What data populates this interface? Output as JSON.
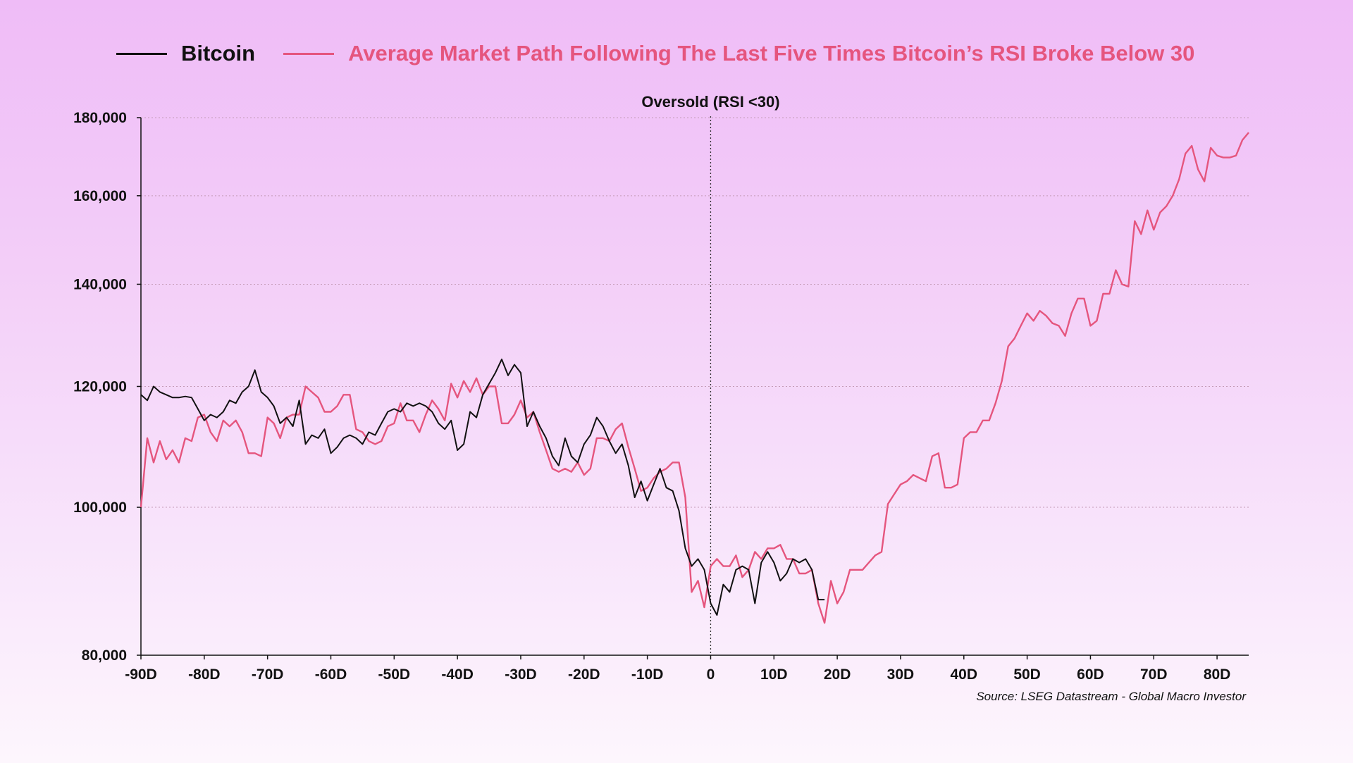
{
  "chart_data": {
    "type": "line",
    "title": "",
    "xlabel": "",
    "ylabel": "",
    "xlim": [
      -90,
      85
    ],
    "ylim": [
      80000,
      180000
    ],
    "y_scale": "log",
    "x_ticks": [
      -90,
      -80,
      -70,
      -60,
      -50,
      -40,
      -30,
      -20,
      -10,
      0,
      10,
      20,
      30,
      40,
      50,
      60,
      70,
      80
    ],
    "x_tick_labels": [
      "-90D",
      "-80D",
      "-70D",
      "-60D",
      "-50D",
      "-40D",
      "-30D",
      "-20D",
      "-10D",
      "0",
      "10D",
      "20D",
      "30D",
      "40D",
      "50D",
      "60D",
      "70D",
      "80D"
    ],
    "y_ticks": [
      80000,
      100000,
      120000,
      140000,
      160000,
      180000
    ],
    "y_tick_labels": [
      "80,000",
      "100,000",
      "120,000",
      "140,000",
      "160,000",
      "180,000"
    ],
    "grid": "horizontal dotted",
    "legend_position": "top",
    "annotations": [
      {
        "x": 0,
        "label": "Oversold (RSI <30)"
      }
    ],
    "source": "Source: LSEG Datastream - Global Macro Investor",
    "series": [
      {
        "name": "Bitcoin",
        "color": "#111111",
        "points": [
          [
            -90,
            118500
          ],
          [
            -89,
            117500
          ],
          [
            -88,
            120000
          ],
          [
            -87,
            119000
          ],
          [
            -86,
            118500
          ],
          [
            -85,
            118000
          ],
          [
            -84,
            118000
          ],
          [
            -83,
            118200
          ],
          [
            -82,
            118000
          ],
          [
            -81,
            116000
          ],
          [
            -80,
            114000
          ],
          [
            -79,
            115000
          ],
          [
            -78,
            114500
          ],
          [
            -77,
            115500
          ],
          [
            -76,
            117500
          ],
          [
            -75,
            117000
          ],
          [
            -74,
            119000
          ],
          [
            -73,
            120000
          ],
          [
            -72,
            123000
          ],
          [
            -71,
            119000
          ],
          [
            -70,
            118000
          ],
          [
            -69,
            116500
          ],
          [
            -68,
            113500
          ],
          [
            -67,
            114500
          ],
          [
            -66,
            113000
          ],
          [
            -65,
            117500
          ],
          [
            -64,
            110000
          ],
          [
            -63,
            111500
          ],
          [
            -62,
            111000
          ],
          [
            -61,
            112500
          ],
          [
            -60,
            108500
          ],
          [
            -59,
            109500
          ],
          [
            -58,
            111000
          ],
          [
            -57,
            111500
          ],
          [
            -56,
            111000
          ],
          [
            -55,
            110000
          ],
          [
            -54,
            112000
          ],
          [
            -53,
            111500
          ],
          [
            -52,
            113500
          ],
          [
            -51,
            115500
          ],
          [
            -50,
            116000
          ],
          [
            -49,
            115500
          ],
          [
            -48,
            117000
          ],
          [
            -47,
            116500
          ],
          [
            -46,
            117000
          ],
          [
            -45,
            116500
          ],
          [
            -44,
            115500
          ],
          [
            -43,
            113500
          ],
          [
            -42,
            112500
          ],
          [
            -41,
            114000
          ],
          [
            -40,
            109000
          ],
          [
            -39,
            110000
          ],
          [
            -38,
            115500
          ],
          [
            -37,
            114500
          ],
          [
            -36,
            118500
          ],
          [
            -35,
            120500
          ],
          [
            -34,
            122500
          ],
          [
            -33,
            125000
          ],
          [
            -32,
            122000
          ],
          [
            -31,
            124000
          ],
          [
            -30,
            122500
          ],
          [
            -29,
            113000
          ],
          [
            -28,
            115500
          ],
          [
            -27,
            113000
          ],
          [
            -26,
            111000
          ],
          [
            -25,
            108000
          ],
          [
            -24,
            106500
          ],
          [
            -23,
            111000
          ],
          [
            -22,
            108000
          ],
          [
            -21,
            107000
          ],
          [
            -20,
            110000
          ],
          [
            -19,
            111500
          ],
          [
            -18,
            114500
          ],
          [
            -17,
            113000
          ],
          [
            -16,
            110500
          ],
          [
            -15,
            108500
          ],
          [
            -14,
            110000
          ],
          [
            -13,
            106500
          ],
          [
            -12,
            101500
          ],
          [
            -11,
            104000
          ],
          [
            -10,
            101000
          ],
          [
            -9,
            103500
          ],
          [
            -8,
            106000
          ],
          [
            -7,
            103000
          ],
          [
            -6,
            102500
          ],
          [
            -5,
            99500
          ],
          [
            -4,
            94000
          ],
          [
            -3,
            91500
          ],
          [
            -2,
            92500
          ],
          [
            -1,
            91000
          ],
          [
            0,
            86500
          ],
          [
            1,
            85000
          ],
          [
            2,
            89000
          ],
          [
            3,
            88000
          ],
          [
            4,
            91000
          ],
          [
            5,
            91500
          ],
          [
            6,
            91000
          ],
          [
            7,
            86500
          ],
          [
            8,
            92000
          ],
          [
            9,
            93500
          ],
          [
            10,
            92000
          ],
          [
            11,
            89500
          ],
          [
            12,
            90500
          ],
          [
            13,
            92500
          ],
          [
            14,
            92000
          ],
          [
            15,
            92500
          ],
          [
            16,
            91000
          ],
          [
            17,
            87000
          ],
          [
            18,
            87000
          ]
        ]
      },
      {
        "name": "Average Market Path Following The Last Five Times Bitcoin’s RSI Broke Below 30",
        "color": "#e5557e",
        "points": [
          [
            -90,
            100000
          ],
          [
            -89,
            111000
          ],
          [
            -88,
            107000
          ],
          [
            -87,
            110500
          ],
          [
            -86,
            107500
          ],
          [
            -85,
            109000
          ],
          [
            -84,
            107000
          ],
          [
            -83,
            111000
          ],
          [
            -82,
            110500
          ],
          [
            -81,
            114500
          ],
          [
            -80,
            115000
          ],
          [
            -79,
            112000
          ],
          [
            -78,
            110500
          ],
          [
            -77,
            114000
          ],
          [
            -76,
            113000
          ],
          [
            -75,
            114000
          ],
          [
            -74,
            112000
          ],
          [
            -73,
            108500
          ],
          [
            -72,
            108500
          ],
          [
            -71,
            108000
          ],
          [
            -70,
            114500
          ],
          [
            -69,
            113500
          ],
          [
            -68,
            111000
          ],
          [
            -67,
            114500
          ],
          [
            -66,
            115000
          ],
          [
            -65,
            115000
          ],
          [
            -64,
            120000
          ],
          [
            -63,
            119000
          ],
          [
            -62,
            118000
          ],
          [
            -61,
            115500
          ],
          [
            -60,
            115500
          ],
          [
            -59,
            116500
          ],
          [
            -58,
            118500
          ],
          [
            -57,
            118500
          ],
          [
            -56,
            112500
          ],
          [
            -55,
            112000
          ],
          [
            -54,
            110500
          ],
          [
            -53,
            110000
          ],
          [
            -52,
            110500
          ],
          [
            -51,
            113000
          ],
          [
            -50,
            113500
          ],
          [
            -49,
            117000
          ],
          [
            -48,
            114000
          ],
          [
            -47,
            114000
          ],
          [
            -46,
            112000
          ],
          [
            -45,
            115000
          ],
          [
            -44,
            117500
          ],
          [
            -43,
            116000
          ],
          [
            -42,
            114000
          ],
          [
            -41,
            120500
          ],
          [
            -40,
            118000
          ],
          [
            -39,
            121000
          ],
          [
            -38,
            119000
          ],
          [
            -37,
            121500
          ],
          [
            -36,
            118500
          ],
          [
            -35,
            120000
          ],
          [
            -34,
            120000
          ],
          [
            -33,
            113500
          ],
          [
            -32,
            113500
          ],
          [
            -31,
            115000
          ],
          [
            -30,
            117500
          ],
          [
            -29,
            114500
          ],
          [
            -28,
            115500
          ],
          [
            -27,
            112000
          ],
          [
            -26,
            109000
          ],
          [
            -25,
            106000
          ],
          [
            -24,
            105500
          ],
          [
            -23,
            106000
          ],
          [
            -22,
            105500
          ],
          [
            -21,
            107000
          ],
          [
            -20,
            105000
          ],
          [
            -19,
            106000
          ],
          [
            -18,
            111000
          ],
          [
            -17,
            111000
          ],
          [
            -16,
            110500
          ],
          [
            -15,
            112500
          ],
          [
            -14,
            113500
          ],
          [
            -13,
            109500
          ],
          [
            -12,
            106000
          ],
          [
            -11,
            102500
          ],
          [
            -10,
            103000
          ],
          [
            -9,
            104500
          ],
          [
            -8,
            105500
          ],
          [
            -7,
            106000
          ],
          [
            -6,
            107000
          ],
          [
            -5,
            107000
          ],
          [
            -4,
            101500
          ],
          [
            -3,
            88000
          ],
          [
            -2,
            89500
          ],
          [
            -1,
            86000
          ],
          [
            0,
            91500
          ],
          [
            1,
            92500
          ],
          [
            2,
            91500
          ],
          [
            3,
            91500
          ],
          [
            4,
            93000
          ],
          [
            5,
            90000
          ],
          [
            6,
            91000
          ],
          [
            7,
            93500
          ],
          [
            8,
            92500
          ],
          [
            9,
            94000
          ],
          [
            10,
            94000
          ],
          [
            11,
            94500
          ],
          [
            12,
            92500
          ],
          [
            13,
            92500
          ],
          [
            14,
            90500
          ],
          [
            15,
            90500
          ],
          [
            16,
            91000
          ],
          [
            17,
            86500
          ],
          [
            18,
            84000
          ],
          [
            19,
            89500
          ],
          [
            20,
            86500
          ],
          [
            21,
            88000
          ],
          [
            22,
            91000
          ],
          [
            23,
            91000
          ],
          [
            24,
            91000
          ],
          [
            25,
            92000
          ],
          [
            26,
            93000
          ],
          [
            27,
            93500
          ],
          [
            28,
            100500
          ],
          [
            29,
            102000
          ],
          [
            30,
            103500
          ],
          [
            31,
            104000
          ],
          [
            32,
            105000
          ],
          [
            33,
            104500
          ],
          [
            34,
            104000
          ],
          [
            35,
            108000
          ],
          [
            36,
            108500
          ],
          [
            37,
            103000
          ],
          [
            38,
            103000
          ],
          [
            39,
            103500
          ],
          [
            40,
            111000
          ],
          [
            41,
            112000
          ],
          [
            42,
            112000
          ],
          [
            43,
            114000
          ],
          [
            44,
            114000
          ],
          [
            45,
            117000
          ],
          [
            46,
            121000
          ],
          [
            47,
            127500
          ],
          [
            48,
            129000
          ],
          [
            49,
            131500
          ],
          [
            50,
            134000
          ],
          [
            51,
            132500
          ],
          [
            52,
            134500
          ],
          [
            53,
            133500
          ],
          [
            54,
            132000
          ],
          [
            55,
            131500
          ],
          [
            56,
            129500
          ],
          [
            57,
            134000
          ],
          [
            58,
            137000
          ],
          [
            59,
            137000
          ],
          [
            60,
            131500
          ],
          [
            61,
            132500
          ],
          [
            62,
            138000
          ],
          [
            63,
            138000
          ],
          [
            64,
            143000
          ],
          [
            65,
            140000
          ],
          [
            66,
            139500
          ],
          [
            67,
            154000
          ],
          [
            68,
            151000
          ],
          [
            69,
            156500
          ],
          [
            70,
            152000
          ],
          [
            71,
            156000
          ],
          [
            72,
            157500
          ],
          [
            73,
            160000
          ],
          [
            74,
            164000
          ],
          [
            75,
            170500
          ],
          [
            76,
            172500
          ],
          [
            77,
            166500
          ],
          [
            78,
            163500
          ],
          [
            79,
            172000
          ],
          [
            80,
            170000
          ],
          [
            81,
            169500
          ],
          [
            82,
            169500
          ],
          [
            83,
            170000
          ],
          [
            84,
            174000
          ],
          [
            85,
            176000
          ]
        ]
      }
    ]
  }
}
